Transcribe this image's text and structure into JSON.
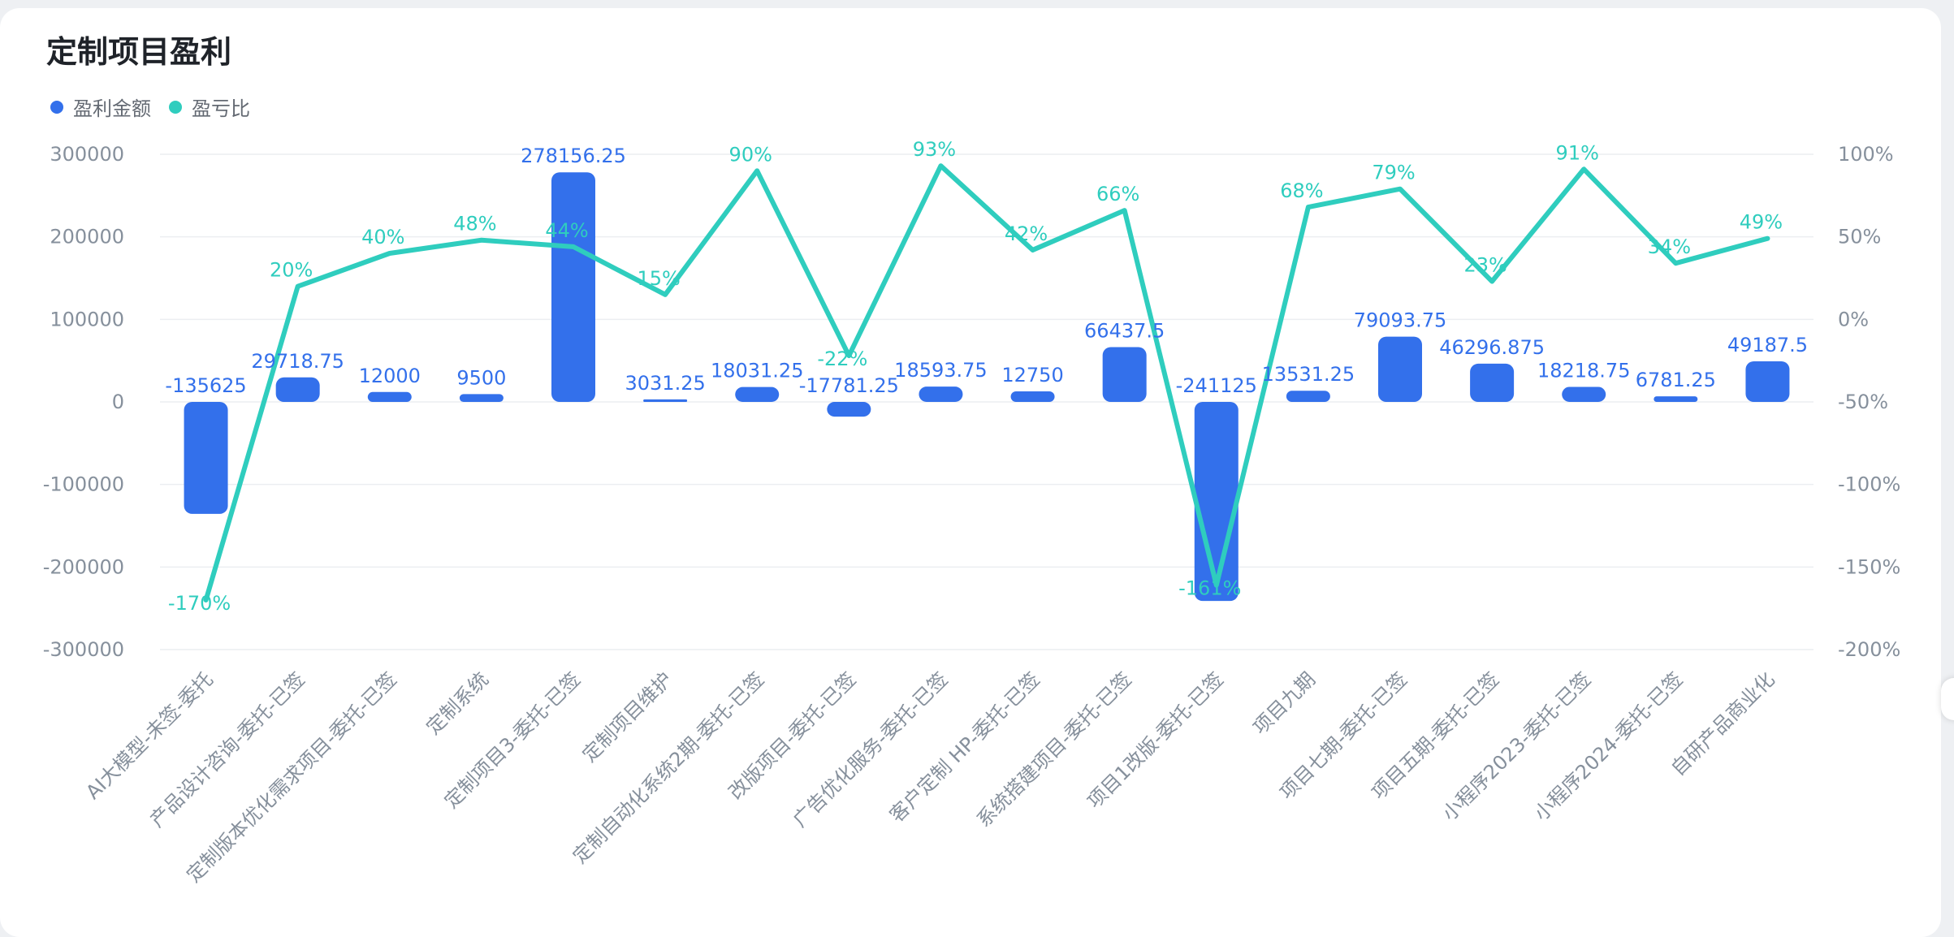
{
  "title": "定制项目盈利",
  "colors": {
    "bar": "#3370eb",
    "line": "#2fcdbe",
    "grid": "#eceef1",
    "axis_text": "#86909c"
  },
  "legend": [
    {
      "name": "盈利金额",
      "color": "#3370eb"
    },
    {
      "name": "盈亏比",
      "color": "#2fcdbe"
    }
  ],
  "chart_data": {
    "type": "bar",
    "title": "定制项目盈利",
    "categories": [
      "AI大模型-未签-委托",
      "产品设计咨询-委托-已签",
      "定制版本优化需求项目-委托-已签",
      "定制系统",
      "定制项目3-委托-已签",
      "定制项目维护",
      "定制自动化系统2期-委托-已签",
      "改版项目-委托-已签",
      "广告优化服务-委托-已签",
      "客户定制 HP-委托-已签",
      "系统搭建项目-委托-已签",
      "项目1改版-委托-已签",
      "项目九期",
      "项目七期-委托-已签",
      "项目五期-委托-已签",
      "小程序2023-委托-已签",
      "小程序2024-委托-已签",
      "自研产品商业化"
    ],
    "series": [
      {
        "name": "盈利金额",
        "type": "bar",
        "axis": "left",
        "values": [
          -135625,
          29718.75,
          12000,
          9500,
          278156.25,
          3031.25,
          18031.25,
          -17781.25,
          18593.75,
          12750,
          66437.5,
          -241125,
          13531.25,
          79093.75,
          46296.875,
          18218.75,
          6781.25,
          49187.5
        ],
        "labels": [
          "-135625",
          "29718.75",
          "12000",
          "9500",
          "278156.25",
          "3031.25",
          "18031.25",
          "-17781.25",
          "18593.75",
          "12750",
          "66437.5",
          "-241125",
          "13531.25",
          "79093.75",
          "46296.875",
          "18218.75",
          "6781.25",
          "49187.5"
        ]
      },
      {
        "name": "盈亏比",
        "type": "line",
        "axis": "right",
        "values": [
          -170,
          20,
          40,
          48,
          44,
          15,
          90,
          -22,
          93,
          42,
          66,
          -161,
          68,
          79,
          23,
          91,
          34,
          49
        ],
        "labels": [
          "-170%",
          "20%",
          "40%",
          "48%",
          "44%",
          "15%",
          "90%",
          "-22%",
          "93%",
          "42%",
          "66%",
          "-161%",
          "68%",
          "79%",
          "23%",
          "91%",
          "34%",
          "49%"
        ]
      }
    ],
    "y_left": {
      "ylim": [
        -300000,
        300000
      ],
      "ticks": [
        300000,
        200000,
        100000,
        0,
        -100000,
        -200000,
        -300000
      ],
      "tick_labels": [
        "300000",
        "200000",
        "100000",
        "0",
        "-100000",
        "-200000",
        "-300000"
      ]
    },
    "y_right": {
      "ylim": [
        -200,
        100
      ],
      "ticks": [
        100,
        50,
        0,
        -50,
        -100,
        -150,
        -200
      ],
      "tick_labels": [
        "100%",
        "50%",
        "0%",
        "-50%",
        "-100%",
        "-150%",
        "-200%"
      ]
    },
    "grid": true,
    "legend_position": "top-left"
  }
}
